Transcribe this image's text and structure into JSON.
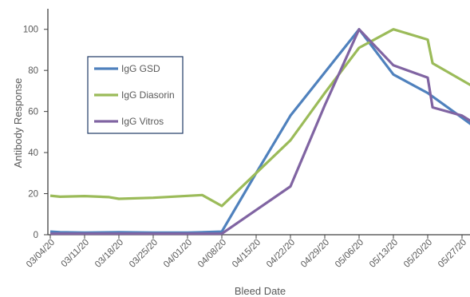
{
  "chart_data": {
    "type": "line",
    "title": "",
    "xlabel": "Bleed Date",
    "ylabel": "Antibody Response",
    "ylim": [
      0,
      110
    ],
    "yticks": [
      0,
      20,
      40,
      60,
      80,
      100
    ],
    "grid": false,
    "legend_position": "top-left",
    "x_tick_labels": [
      "03/04/20",
      "03/11/20",
      "03/18/20",
      "03/25/20",
      "04/01/20",
      "04/08/20",
      "04/15/20",
      "04/22/20",
      "04/29/20",
      "05/06/20",
      "05/13/20",
      "05/20/20",
      "05/27/20"
    ],
    "series": [
      {
        "name": "IgG GSD",
        "color": "#4F81BD",
        "x": [
          "03/04/20",
          "03/06/20",
          "03/11/20",
          "03/18/20",
          "03/25/20",
          "04/01/20",
          "04/08/20",
          "04/15/20",
          "04/22/20",
          "04/29/20",
          "05/06/20",
          "05/13/20",
          "05/20/20",
          "05/27/20",
          "05/29/20"
        ],
        "values": [
          1.5,
          1.2,
          1.0,
          1.2,
          1.0,
          1.0,
          1.5,
          30,
          58,
          79,
          100,
          78,
          69,
          57,
          53.5
        ]
      },
      {
        "name": "IgG Diasorin",
        "color": "#9BBB59",
        "x": [
          "03/04/20",
          "03/06/20",
          "03/11/20",
          "03/16/20",
          "03/18/20",
          "03/25/20",
          "04/04/20",
          "04/08/20",
          "04/15/20",
          "04/22/20",
          "04/29/20",
          "05/06/20",
          "05/13/20",
          "05/20/20",
          "05/21/20",
          "05/29/20"
        ],
        "values": [
          19,
          18.5,
          18.8,
          18.3,
          17.5,
          18,
          19.3,
          14,
          30,
          46,
          69,
          91,
          100,
          95,
          83.5,
          72.5
        ]
      },
      {
        "name": "IgG Vitros",
        "color": "#8064A2",
        "x": [
          "03/04/20",
          "03/11/20",
          "03/18/20",
          "03/25/20",
          "04/01/20",
          "04/08/20",
          "04/15/20",
          "04/22/20",
          "04/29/20",
          "05/06/20",
          "05/13/20",
          "05/20/20",
          "05/21/20",
          "05/27/20",
          "05/29/20"
        ],
        "values": [
          0.5,
          0.5,
          0.5,
          0.5,
          0.5,
          0.5,
          12,
          23.5,
          63,
          100,
          82.5,
          76.5,
          62,
          58,
          55
        ]
      }
    ]
  }
}
